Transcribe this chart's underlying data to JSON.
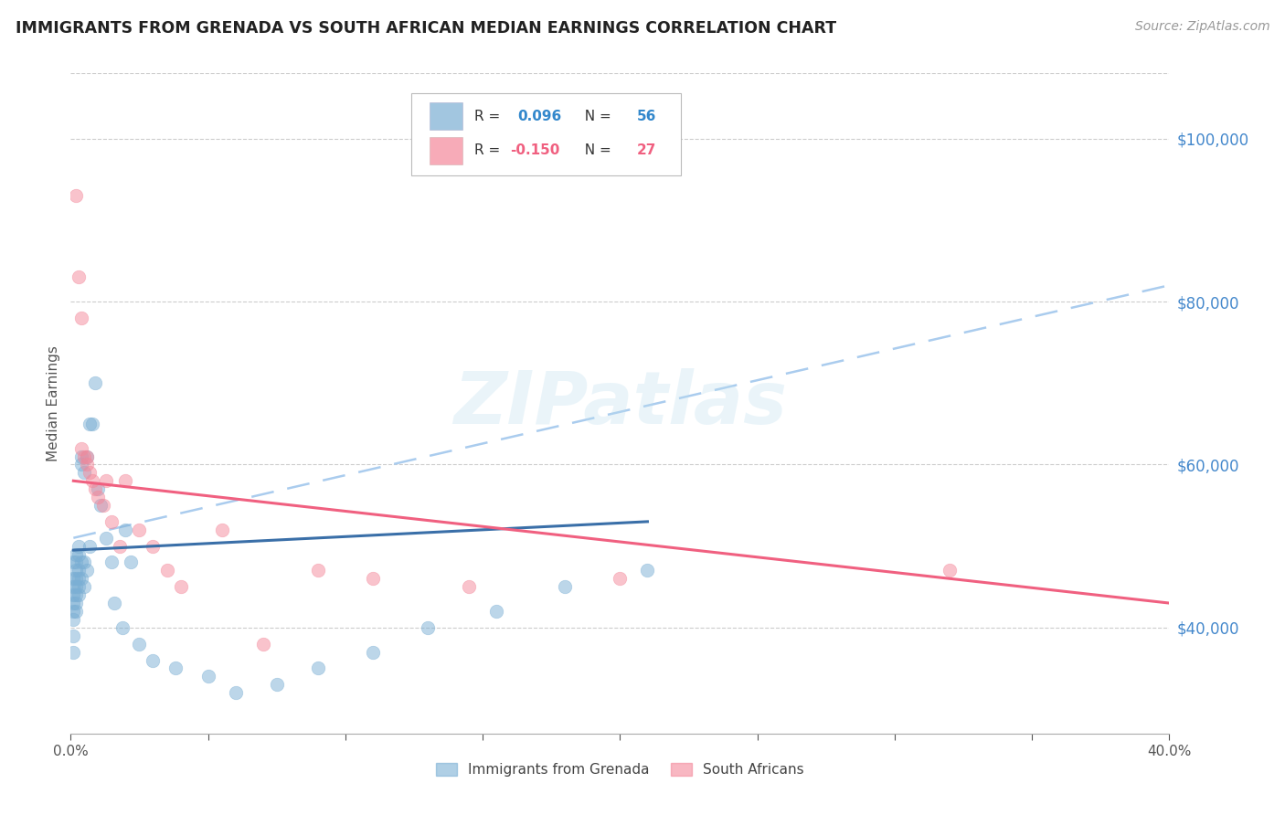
{
  "title": "IMMIGRANTS FROM GRENADA VS SOUTH AFRICAN MEDIAN EARNINGS CORRELATION CHART",
  "source": "Source: ZipAtlas.com",
  "ylabel": "Median Earnings",
  "watermark": "ZIPatlas",
  "xlim": [
    0.0,
    0.4
  ],
  "ylim": [
    27000,
    108000
  ],
  "xticks": [
    0.0,
    0.05,
    0.1,
    0.15,
    0.2,
    0.25,
    0.3,
    0.35,
    0.4
  ],
  "xtick_labels": [
    "0.0%",
    "",
    "",
    "",
    "",
    "",
    "",
    "",
    "40.0%"
  ],
  "ytick_labels_right": [
    "$40,000",
    "$60,000",
    "$80,000",
    "$100,000"
  ],
  "ytick_values_right": [
    40000,
    60000,
    80000,
    100000
  ],
  "blue_color": "#7BAFD4",
  "pink_color": "#F4889A",
  "trendline_blue_solid_color": "#3A6FA8",
  "trendline_pink_solid_color": "#F06080",
  "trendline_blue_dash_color": "#AACCEE",
  "blue_scatter_x": [
    0.001,
    0.001,
    0.001,
    0.001,
    0.001,
    0.001,
    0.001,
    0.001,
    0.001,
    0.002,
    0.002,
    0.002,
    0.002,
    0.002,
    0.002,
    0.002,
    0.002,
    0.003,
    0.003,
    0.003,
    0.003,
    0.003,
    0.003,
    0.004,
    0.004,
    0.004,
    0.004,
    0.005,
    0.005,
    0.005,
    0.006,
    0.006,
    0.007,
    0.007,
    0.008,
    0.009,
    0.01,
    0.011,
    0.013,
    0.015,
    0.016,
    0.019,
    0.02,
    0.022,
    0.025,
    0.03,
    0.038,
    0.05,
    0.06,
    0.075,
    0.09,
    0.11,
    0.13,
    0.155,
    0.18,
    0.21
  ],
  "blue_scatter_y": [
    48000,
    46000,
    45000,
    44000,
    43000,
    42000,
    41000,
    39000,
    37000,
    49000,
    48000,
    47000,
    46000,
    45000,
    44000,
    43000,
    42000,
    50000,
    49000,
    47000,
    46000,
    45000,
    44000,
    61000,
    60000,
    48000,
    46000,
    59000,
    48000,
    45000,
    61000,
    47000,
    65000,
    50000,
    65000,
    70000,
    57000,
    55000,
    51000,
    48000,
    43000,
    40000,
    52000,
    48000,
    38000,
    36000,
    35000,
    34000,
    32000,
    33000,
    35000,
    37000,
    40000,
    42000,
    45000,
    47000
  ],
  "pink_scatter_x": [
    0.002,
    0.003,
    0.004,
    0.004,
    0.005,
    0.006,
    0.006,
    0.007,
    0.008,
    0.009,
    0.01,
    0.012,
    0.013,
    0.015,
    0.018,
    0.02,
    0.025,
    0.03,
    0.035,
    0.04,
    0.055,
    0.07,
    0.09,
    0.11,
    0.145,
    0.2,
    0.32
  ],
  "pink_scatter_y": [
    93000,
    83000,
    78000,
    62000,
    61000,
    61000,
    60000,
    59000,
    58000,
    57000,
    56000,
    55000,
    58000,
    53000,
    50000,
    58000,
    52000,
    50000,
    47000,
    45000,
    52000,
    38000,
    47000,
    46000,
    45000,
    46000,
    47000
  ],
  "blue_trend_x": [
    0.001,
    0.21
  ],
  "blue_trend_y": [
    49500,
    53000
  ],
  "blue_dash_trend_x": [
    0.001,
    0.4
  ],
  "blue_dash_trend_y": [
    51000,
    82000
  ],
  "pink_trend_x": [
    0.001,
    0.4
  ],
  "pink_trend_y": [
    58000,
    43000
  ]
}
